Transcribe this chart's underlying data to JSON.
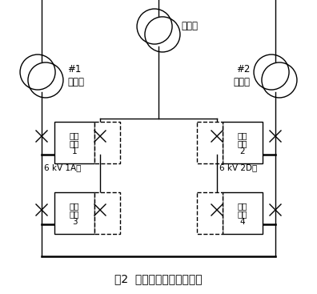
{
  "title": "图2  厂用电互联快切示意图",
  "label_qibei": "启备变",
  "label_1a": "#1",
  "label_1b": "高厂变",
  "label_2a": "#2",
  "label_2b": "高厂变",
  "label_bus1": "6 kV 1A段",
  "label_bus2": "6 kV 2D段",
  "label_box1a": "快切",
  "label_box1b": "装置",
  "label_box1c": "1",
  "label_box2a": "快切",
  "label_box2b": "装置",
  "label_box2c": "2",
  "label_box3a": "快切",
  "label_box3b": "装置",
  "label_box3c": "3",
  "label_box4a": "快切",
  "label_box4b": "装置",
  "label_box4c": "4",
  "bg_color": "#ffffff",
  "line_color": "#000000",
  "lw": 1.0,
  "lw_bus": 1.8,
  "font_size_title": 10,
  "font_size_label": 8.5,
  "font_size_box": 7.5,
  "font_size_bus": 7.5
}
